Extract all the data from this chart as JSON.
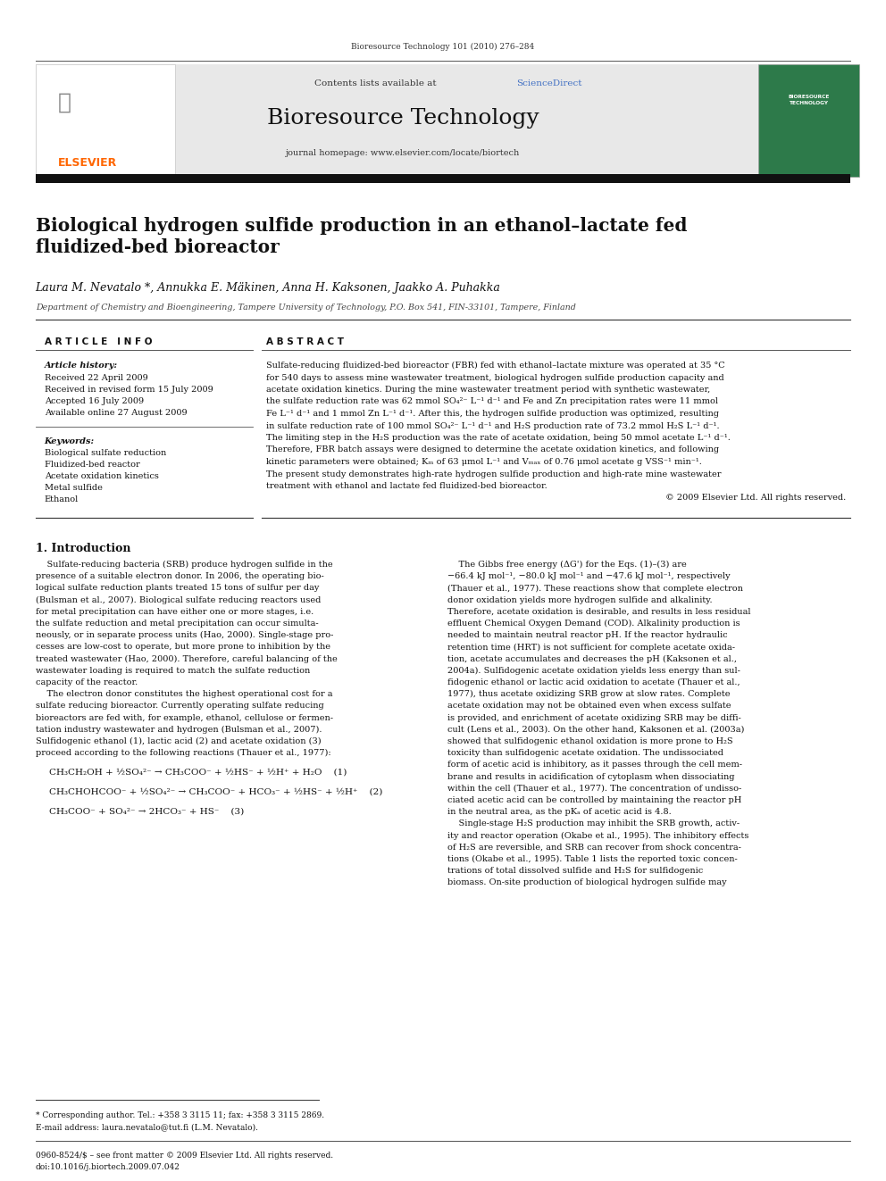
{
  "page_width": 9.92,
  "page_height": 13.23,
  "bg_color": "#ffffff",
  "journal_ref": "Bioresource Technology 101 (2010) 276–284",
  "header_bg": "#e8e8e8",
  "contents_text": "Contents lists available at",
  "sciencedirect_text": "ScienceDirect",
  "sciencedirect_color": "#4472c4",
  "journal_name": "Bioresource Technology",
  "journal_homepage": "journal homepage: www.elsevier.com/locate/biortech",
  "article_title": "Biological hydrogen sulfide production in an ethanol–lactate fed\nfluidized-bed bioreactor",
  "authors": "Laura M. Nevatalo *, Annukka E. Mäkinen, Anna H. Kaksonen, Jaakko A. Puhakka",
  "affiliation": "Department of Chemistry and Bioengineering, Tampere University of Technology, P.O. Box 541, FIN-33101, Tampere, Finland",
  "article_info_header": "A R T I C L E   I N F O",
  "abstract_header": "A B S T R A C T",
  "article_history_label": "Article history:",
  "received_date": "Received 22 April 2009",
  "received_revised": "Received in revised form 15 July 2009",
  "accepted": "Accepted 16 July 2009",
  "available_online": "Available online 27 August 2009",
  "keywords_label": "Keywords:",
  "keywords": [
    "Biological sulfate reduction",
    "Fluidized-bed reactor",
    "Acetate oxidation kinetics",
    "Metal sulfide",
    "Ethanol"
  ],
  "abstract_lines": [
    "Sulfate-reducing fluidized-bed bioreactor (FBR) fed with ethanol–lactate mixture was operated at 35 °C",
    "for 540 days to assess mine wastewater treatment, biological hydrogen sulfide production capacity and",
    "acetate oxidation kinetics. During the mine wastewater treatment period with synthetic wastewater,",
    "the sulfate reduction rate was 62 mmol SO₄²⁻ L⁻¹ d⁻¹ and Fe and Zn precipitation rates were 11 mmol",
    "Fe L⁻¹ d⁻¹ and 1 mmol Zn L⁻¹ d⁻¹. After this, the hydrogen sulfide production was optimized, resulting",
    "in sulfate reduction rate of 100 mmol SO₄²⁻ L⁻¹ d⁻¹ and H₂S production rate of 73.2 mmol H₂S L⁻¹ d⁻¹.",
    "The limiting step in the H₂S production was the rate of acetate oxidation, being 50 mmol acetate L⁻¹ d⁻¹.",
    "Therefore, FBR batch assays were designed to determine the acetate oxidation kinetics, and following",
    "kinetic parameters were obtained; Kₘ of 63 μmol L⁻¹ and Vₘₐₓ of 0.76 μmol acetate g VSS⁻¹ min⁻¹.",
    "The present study demonstrates high-rate hydrogen sulfide production and high-rate mine wastewater",
    "treatment with ethanol and lactate fed fluidized-bed bioreactor.",
    "© 2009 Elsevier Ltd. All rights reserved."
  ],
  "section1_title": "1. Introduction",
  "intro_col1_lines": [
    "    Sulfate-reducing bacteria (SRB) produce hydrogen sulfide in the",
    "presence of a suitable electron donor. In 2006, the operating bio-",
    "logical sulfate reduction plants treated 15 tons of sulfur per day",
    "(Bulsman et al., 2007). Biological sulfate reducing reactors used",
    "for metal precipitation can have either one or more stages, i.e.",
    "the sulfate reduction and metal precipitation can occur simulta-",
    "neously, or in separate process units (Hao, 2000). Single-stage pro-",
    "cesses are low-cost to operate, but more prone to inhibition by the",
    "treated wastewater (Hao, 2000). Therefore, careful balancing of the",
    "wastewater loading is required to match the sulfate reduction",
    "capacity of the reactor.",
    "    The electron donor constitutes the highest operational cost for a",
    "sulfate reducing bioreactor. Currently operating sulfate reducing",
    "bioreactors are fed with, for example, ethanol, cellulose or fermen-",
    "tation industry wastewater and hydrogen (Bulsman et al., 2007).",
    "Sulfidogenic ethanol (1), lactic acid (2) and acetate oxidation (3)",
    "proceed according to the following reactions (Thauer et al., 1977):"
  ],
  "intro_col2_lines": [
    "    The Gibbs free energy (ΔG') for the Eqs. (1)–(3) are",
    "−66.4 kJ mol⁻¹, −80.0 kJ mol⁻¹ and −47.6 kJ mol⁻¹, respectively",
    "(Thauer et al., 1977). These reactions show that complete electron",
    "donor oxidation yields more hydrogen sulfide and alkalinity.",
    "Therefore, acetate oxidation is desirable, and results in less residual",
    "effluent Chemical Oxygen Demand (COD). Alkalinity production is",
    "needed to maintain neutral reactor pH. If the reactor hydraulic",
    "retention time (HRT) is not sufficient for complete acetate oxida-",
    "tion, acetate accumulates and decreases the pH (Kaksonen et al.,",
    "2004a). Sulfidogenic acetate oxidation yields less energy than sul-",
    "fidogenic ethanol or lactic acid oxidation to acetate (Thauer et al.,",
    "1977), thus acetate oxidizing SRB grow at slow rates. Complete",
    "acetate oxidation may not be obtained even when excess sulfate",
    "is provided, and enrichment of acetate oxidizing SRB may be diffi-",
    "cult (Lens et al., 2003). On the other hand, Kaksonen et al. (2003a)",
    "showed that sulfidogenic ethanol oxidation is more prone to H₂S",
    "toxicity than sulfidogenic acetate oxidation. The undissociated",
    "form of acetic acid is inhibitory, as it passes through the cell mem-",
    "brane and results in acidification of cytoplasm when dissociating",
    "within the cell (Thauer et al., 1977). The concentration of undisso-",
    "ciated acetic acid can be controlled by maintaining the reactor pH",
    "in the neutral area, as the pKₐ of acetic acid is 4.8.",
    "    Single-stage H₂S production may inhibit the SRB growth, activ-",
    "ity and reactor operation (Okabe et al., 1995). The inhibitory effects",
    "of H₂S are reversible, and SRB can recover from shock concentra-",
    "tions (Okabe et al., 1995). Table 1 lists the reported toxic concen-",
    "trations of total dissolved sulfide and H₂S for sulfidogenic",
    "biomass. On-site production of biological hydrogen sulfide may"
  ],
  "eq1": "CH₃CH₂OH + ½SO₄²⁻ → CH₃COO⁻ + ½HS⁻ + ½H⁺ + H₂O    (1)",
  "eq2": "CH₃CHOHCOO⁻ + ½SO₄²⁻ → CH₃COO⁻ + HCO₃⁻ + ½HS⁻ + ½H⁺    (2)",
  "eq3": "CH₃COO⁻ + SO₄²⁻ → 2HCO₃⁻ + HS⁻    (3)",
  "footnote1": "* Corresponding author. Tel.: +358 3 3115 11; fax: +358 3 3115 2869.",
  "footnote2": "E-mail address: laura.nevatalo@tut.fi (L.M. Nevatalo).",
  "footer1": "0960-8524/$ – see front matter © 2009 Elsevier Ltd. All rights reserved.",
  "footer2": "doi:10.1016/j.biortech.2009.07.042",
  "link_color": "#4040cc",
  "elsevier_orange": "#FF6600",
  "cover_green": "#2d7a4a"
}
